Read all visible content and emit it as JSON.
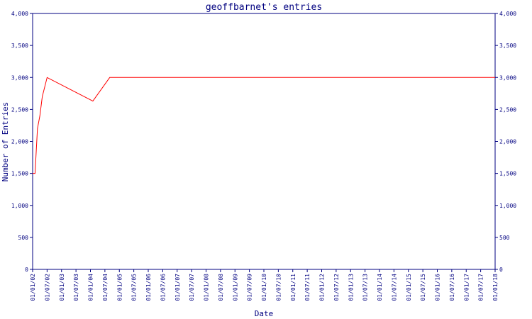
{
  "chart_data": {
    "type": "line",
    "title": "geoffbarnet's entries",
    "xlabel": "Date",
    "ylabel": "Number of Entries",
    "ylim": [
      0,
      4000
    ],
    "y_ticks": [
      "0",
      "500",
      "1,000",
      "1,500",
      "2,000",
      "2,500",
      "3,000",
      "3,500",
      "4,000"
    ],
    "y_tick_values": [
      0,
      500,
      1000,
      1500,
      2000,
      2500,
      3000,
      3500,
      4000
    ],
    "x_ticks": [
      "01/01/02",
      "01/07/02",
      "01/01/03",
      "01/07/03",
      "01/01/04",
      "01/07/04",
      "01/01/05",
      "01/07/05",
      "01/01/06",
      "01/07/06",
      "01/01/07",
      "01/07/07",
      "01/01/08",
      "01/07/08",
      "01/01/09",
      "01/07/09",
      "01/01/10",
      "01/07/10",
      "01/01/11",
      "01/07/11",
      "01/01/12",
      "01/07/12",
      "01/01/13",
      "01/07/13",
      "01/01/14",
      "01/07/14",
      "01/01/15",
      "01/07/15",
      "01/01/16",
      "01/07/16",
      "01/01/17",
      "01/07/17",
      "01/01/18"
    ],
    "grid": false,
    "line_color": "#ff0000",
    "axis_color": "#000080",
    "series": [
      {
        "x": [
          "01/01/02",
          "01/02/02",
          "01/03/02",
          "01/04/02",
          "01/05/02",
          "01/07/02",
          "01/02/04",
          "01/09/04",
          "01/10/04",
          "01/01/18"
        ],
        "y": [
          1500,
          1500,
          2200,
          2400,
          2700,
          3000,
          2630,
          3000,
          3000,
          3000
        ]
      }
    ]
  }
}
